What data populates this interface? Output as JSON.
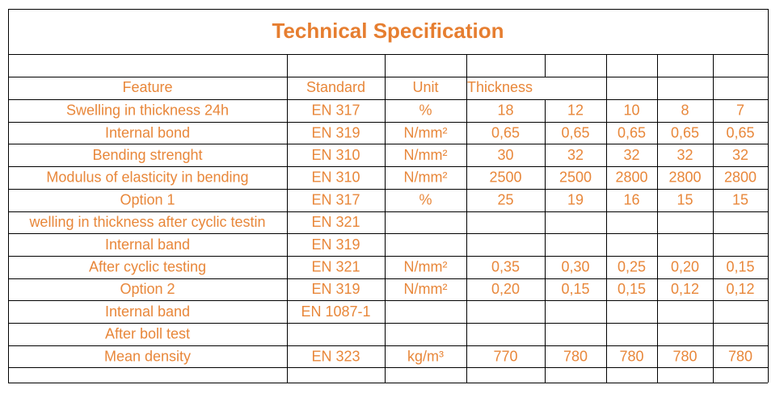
{
  "title": "Technical Specification",
  "table": {
    "header": {
      "feature": "Feature",
      "standard": "Standard",
      "unit": "Unit",
      "thickness": "Thickness"
    },
    "rows": [
      {
        "feature": "Swelling in thickness 24h",
        "standard": "EN 317",
        "unit": "%",
        "values": [
          "18",
          "12",
          "10",
          "8",
          "7"
        ]
      },
      {
        "feature": "Internal bond",
        "standard": "EN 319",
        "unit": "N/mm²",
        "values": [
          "0,65",
          "0,65",
          "0,65",
          "0,65",
          "0,65"
        ]
      },
      {
        "feature": "Bending strenght",
        "standard": "EN 310",
        "unit": "N/mm²",
        "values": [
          "30",
          "32",
          "32",
          "32",
          "32"
        ]
      },
      {
        "feature": "Modulus of elasticity in bending",
        "standard": "EN 310",
        "unit": "N/mm²",
        "values": [
          "2500",
          "2500",
          "2800",
          "2800",
          "2800"
        ]
      },
      {
        "feature": "Option 1",
        "standard": "EN 317",
        "unit": "%",
        "values": [
          "25",
          "19",
          "16",
          "15",
          "15"
        ]
      },
      {
        "feature": "welling in thickness after cyclic testin",
        "standard": "EN 321"
      },
      {
        "feature": "Internal band",
        "standard": "EN 319"
      },
      {
        "feature": "After cyclic testing",
        "standard": "EN 321",
        "unit": "N/mm²",
        "values": [
          "0,35",
          "0,30",
          "0,25",
          "0,20",
          "0,15"
        ]
      },
      {
        "feature": "Option 2",
        "standard": "EN 319",
        "unit": "N/mm²",
        "values": [
          "0,20",
          "0,15",
          "0,15",
          "0,12",
          "0,12"
        ]
      },
      {
        "feature": "Internal band",
        "standard": "EN 1087-1"
      },
      {
        "feature": "After boll test"
      },
      {
        "feature": "Mean density",
        "standard": "EN 323",
        "unit": "kg/m³",
        "values": [
          "770",
          "780",
          "780",
          "780",
          "780"
        ]
      }
    ]
  }
}
